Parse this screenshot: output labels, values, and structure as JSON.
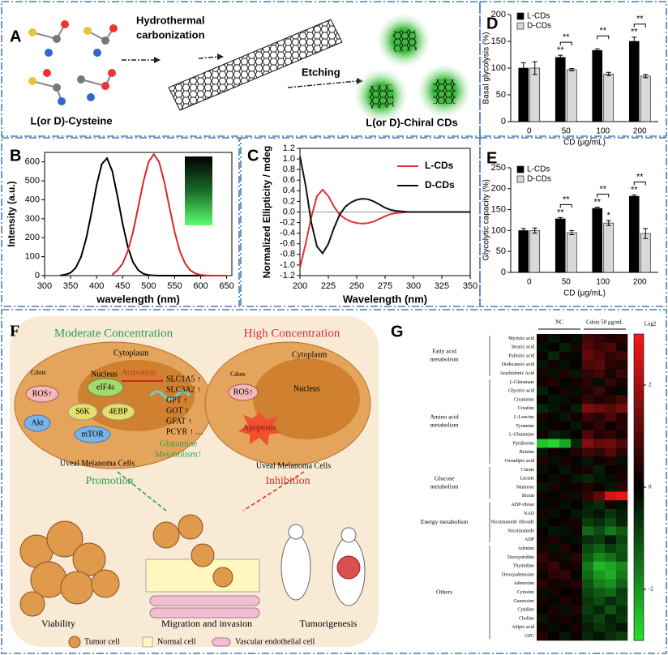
{
  "diagrams": {
    "A": {
      "label": "A",
      "step1": [
        "Hydrothermal",
        "carbonization"
      ],
      "step2": "Etching",
      "source": "L(or D)-Cysteine",
      "product": "L(or D)-Chiral CDs"
    },
    "F": {
      "label": "F",
      "moderate": "Moderate Concentration",
      "high": "High Concentration",
      "left_cell": {
        "cytoplasm": "Cytoplasm",
        "nucleus": "Nucleus",
        "activation": "Activation",
        "cdots": "Cdots",
        "ros": "ROS↑",
        "eif": "eIF4s",
        "s6k": "S6K",
        "ebp": "4EBP",
        "akt": "Akt",
        "mtor": "mTOR",
        "genes": [
          "SLC1A5 ↑",
          "SLC3A2 ↑",
          "GPT ↑",
          "GOT ↑",
          "GFAT ↑",
          "PCYR ↑ …"
        ],
        "glutamine": [
          "Glutamine",
          "Metabolism↑"
        ],
        "name": "Uveal Melanoma Cells"
      },
      "right_cell": {
        "cytoplasm": "Cytoplasm",
        "nucleus": "Nucleus",
        "cdots": "Cdots",
        "ros": "ROS↑",
        "apoptosis": "Apoptosis",
        "name": "Uveal Melanoma Cells"
      },
      "promotion": "Promotion",
      "inhibition": "Inhibition",
      "viability": "Viability",
      "migration": "Migration and invasion",
      "tumorigenesis": "Tumorigenesis",
      "legend": [
        "Tumor cell",
        "Normal cell",
        "Vascular endothelial cell"
      ]
    }
  },
  "chart_data": [
    {
      "panel": "B",
      "type": "line",
      "xlabel": "wavelength (nm)",
      "ylabel": "Intensity (a.u.)",
      "x": [
        330,
        340,
        350,
        360,
        370,
        380,
        390,
        400,
        410,
        420,
        430,
        440,
        450,
        460,
        470,
        480,
        490,
        500,
        510,
        520,
        530,
        540,
        550,
        560,
        570,
        580,
        590,
        600,
        610,
        620,
        630,
        640,
        650
      ],
      "series": [
        {
          "color": "#000000",
          "values": [
            1,
            5,
            15,
            42,
            98,
            195,
            331,
            478,
            589,
            619,
            553,
            421,
            273,
            151,
            71,
            29,
            10,
            3,
            1,
            0,
            0,
            0,
            0,
            0,
            0,
            0,
            0,
            0,
            0,
            0,
            0,
            0,
            0
          ]
        },
        {
          "color": "#d62728",
          "values": [
            null,
            null,
            null,
            null,
            null,
            null,
            null,
            null,
            null,
            null,
            5,
            28,
            64,
            130,
            231,
            361,
            496,
            600,
            640,
            600,
            496,
            361,
            231,
            130,
            64,
            28,
            11,
            4,
            1,
            0,
            0,
            0,
            0
          ]
        }
      ],
      "xlim": [
        300,
        660
      ],
      "xticks": [
        300,
        350,
        400,
        450,
        500,
        550,
        600,
        650
      ],
      "ylim": [
        0,
        650
      ],
      "yticks": [
        0,
        100,
        200,
        300,
        400,
        500,
        600
      ]
    },
    {
      "panel": "C",
      "type": "line",
      "xlabel": "Wavelength (nm)",
      "ylabel": "Normalized Ellipticity / mdeg",
      "x": [
        200,
        205,
        210,
        215,
        220,
        225,
        230,
        235,
        240,
        245,
        250,
        255,
        260,
        265,
        270,
        275,
        280,
        285,
        290,
        295,
        300,
        305,
        310,
        315,
        320,
        325,
        330,
        335,
        340,
        345,
        350
      ],
      "series": [
        {
          "name": "L-CDs",
          "color": "#e03030",
          "values": [
            -1.05,
            -0.6,
            -0.1,
            0.3,
            0.42,
            0.3,
            0.1,
            -0.05,
            -0.13,
            -0.18,
            -0.21,
            -0.22,
            -0.21,
            -0.18,
            -0.13,
            -0.08,
            -0.04,
            -0.02,
            -0.01,
            0,
            0,
            0,
            0,
            0,
            0,
            0,
            0,
            0,
            0,
            0,
            0
          ]
        },
        {
          "name": "D-CDs",
          "color": "#111111",
          "values": [
            1.05,
            0.5,
            -0.2,
            -0.65,
            -0.78,
            -0.6,
            -0.3,
            -0.05,
            0.1,
            0.18,
            0.23,
            0.25,
            0.24,
            0.2,
            0.14,
            0.08,
            0.04,
            0.02,
            0.01,
            0,
            0,
            0,
            0,
            0,
            0,
            0,
            0,
            0,
            0,
            0,
            0
          ]
        }
      ],
      "xlim": [
        200,
        350
      ],
      "xticks": [
        200,
        225,
        250,
        275,
        300,
        325,
        350
      ],
      "ylim": [
        -1.2,
        1.2
      ],
      "yticks": [
        1.2,
        {
          "value": 1,
          "label": "1.0"
        },
        0.8,
        0.6,
        0.4,
        0.2,
        {
          "value": 0,
          "label": "0.0"
        },
        -0.2,
        -0.4,
        -0.6,
        -0.8,
        {
          "value": -1,
          "label": "-1.0"
        },
        -1.2
      ],
      "legend": "upper right"
    },
    {
      "panel": "D",
      "type": "bar",
      "xlabel": "CD (μg/mL)",
      "ylabel": "Basal glycolysis (%)",
      "categories": [
        "0",
        "50",
        "100",
        "200"
      ],
      "series": [
        {
          "name": "L-CDs",
          "color": "#000000",
          "values": [
            100,
            120,
            133,
            150
          ],
          "errors": [
            10,
            4,
            3,
            8
          ],
          "significance": [
            null,
            "**",
            null,
            "**"
          ]
        },
        {
          "name": "D-CDs",
          "color": "#d9d9d9",
          "values": [
            100,
            97,
            89,
            85
          ],
          "errors": [
            12,
            2,
            3,
            3
          ]
        }
      ],
      "pair_significance": [
        null,
        "**",
        "**",
        "**"
      ],
      "ylim": [
        0,
        200
      ],
      "yticks": [
        0,
        50,
        100,
        150,
        200
      ],
      "legend": "upper left"
    },
    {
      "panel": "E",
      "type": "bar",
      "xlabel": "CD (μg/mL)",
      "ylabel": "Glycolytic capacity (%)",
      "categories": [
        "0",
        "50",
        "100",
        "200"
      ],
      "series": [
        {
          "name": "L-CDs",
          "color": "#000000",
          "values": [
            100,
            128,
            153,
            182
          ],
          "errors": [
            5,
            3,
            3,
            3
          ],
          "significance": [
            null,
            "**",
            "**",
            "**"
          ]
        },
        {
          "name": "D-CDs",
          "color": "#d9d9d9",
          "values": [
            100,
            95,
            118,
            93
          ],
          "errors": [
            6,
            5,
            6,
            12
          ],
          "significance": [
            null,
            null,
            "*",
            null
          ]
        }
      ],
      "pair_significance": [
        null,
        "**",
        "**",
        "**"
      ],
      "ylim": [
        0,
        250
      ],
      "yticks": [
        0,
        50,
        100,
        150,
        200,
        250
      ],
      "legend": "upper left"
    },
    {
      "panel": "G",
      "type": "heatmap",
      "column_groups": [
        "NC",
        "Cdots 50 μg/mL"
      ],
      "groups": [
        [
          "Fatty acid",
          "metabolism"
        ],
        [
          "Amino acid",
          "metabolism"
        ],
        [
          "Glucose",
          "metabolism"
        ],
        [
          "Energy metabolism"
        ],
        [
          "Others"
        ]
      ],
      "rows": [
        "Myristic acid",
        "Stearic acid",
        "Palmitic acid",
        "Dodecanoic acid",
        "Arachidonic Acid",
        "L-Glutamate",
        "Glyceric acid",
        "Creatinine",
        "Creatine",
        "L-Leucine",
        "Tyramine",
        "L-Glutamine",
        "Pyridoxine",
        "Betaine",
        "Oxoadipic acid",
        "Citrate",
        "Lactate",
        "Mannose",
        "Biotin",
        "ADP-ribose",
        "NAD",
        "Nicotinamide riboside",
        "Nicotinamide",
        "ADP",
        "Adenine",
        "Deoxyuridine",
        "Thymidine",
        "Deoxyadenosine",
        "Adenosine",
        "Cytosine",
        "Guanosine",
        "Cytidine",
        "Choline",
        "Adipic acid",
        "GPC"
      ],
      "values": [
        [
          0.2,
          -0.3,
          0.1,
          -0.2,
          0.8,
          0.6,
          0.4,
          0.5
        ],
        [
          -0.2,
          0.1,
          -0.4,
          0.3,
          1.0,
          0.7,
          0.9,
          0.3
        ],
        [
          0.1,
          -0.5,
          0.2,
          -0.1,
          1.2,
          0.9,
          0.6,
          0.8
        ],
        [
          -0.3,
          0.2,
          -0.2,
          0.1,
          0.9,
          1.1,
          0.5,
          0.4
        ],
        [
          0.3,
          -0.2,
          0.4,
          -0.3,
          0.6,
          0.8,
          0.3,
          0.7
        ],
        [
          0.2,
          0.4,
          -0.1,
          0.3,
          0.5,
          -0.2,
          0.6,
          0.3
        ],
        [
          -0.4,
          0.1,
          0.3,
          -0.2,
          0.4,
          0.7,
          0.2,
          -0.1
        ],
        [
          0.1,
          -0.3,
          -0.2,
          0.2,
          0.6,
          0.4,
          0.5,
          0.8
        ],
        [
          -0.5,
          -0.3,
          0.2,
          -0.4,
          1.5,
          1.3,
          1.1,
          1.4
        ],
        [
          0.3,
          0.1,
          -0.3,
          0.2,
          0.7,
          0.5,
          0.9,
          0.4
        ],
        [
          -0.2,
          0.2,
          0.1,
          -0.3,
          0.3,
          0.6,
          0.2,
          0.5
        ],
        [
          0.2,
          -0.4,
          -0.3,
          0.1,
          0.9,
          0.4,
          0.6,
          0.3
        ],
        [
          -2.6,
          -2.8,
          -2.2,
          -0.5,
          1.6,
          1.2,
          1.4,
          0.9
        ],
        [
          -0.3,
          0.2,
          -0.1,
          0.4,
          0.8,
          0.6,
          1.0,
          0.5
        ],
        [
          0.4,
          -0.2,
          0.3,
          -0.1,
          -0.3,
          0.2,
          0.4,
          -0.2
        ],
        [
          -0.2,
          0.1,
          -0.3,
          0.2,
          0.3,
          -0.4,
          0.1,
          0.2
        ],
        [
          0.1,
          -0.2,
          0.2,
          -0.3,
          -0.5,
          -0.3,
          -0.2,
          0.3
        ],
        [
          -0.3,
          0.3,
          -0.1,
          0.2,
          0.4,
          0.2,
          -0.3,
          0.5
        ],
        [
          0.2,
          -0.1,
          0.3,
          -0.2,
          0.6,
          1.2,
          2.6,
          2.8
        ],
        [
          -0.1,
          0.2,
          -0.2,
          0.1,
          -0.4,
          -0.6,
          0.3,
          -0.2
        ],
        [
          0.3,
          -0.2,
          0.1,
          -0.3,
          -0.5,
          -0.3,
          -0.7,
          -0.4
        ],
        [
          -0.2,
          0.1,
          0.2,
          0.3,
          -0.8,
          -0.6,
          -1.0,
          -0.5
        ],
        [
          0.1,
          -0.3,
          -0.2,
          0.2,
          -1.4,
          -1.0,
          -1.6,
          -1.2
        ],
        [
          0.2,
          0.4,
          -0.1,
          -0.2,
          -0.6,
          -0.8,
          -0.3,
          -0.9
        ],
        [
          0.3,
          -0.2,
          0.4,
          0.1,
          -1.0,
          -1.3,
          -0.8,
          -1.1
        ],
        [
          0.6,
          0.3,
          -0.2,
          0.5,
          -1.2,
          -1.8,
          -1.5,
          -1.0
        ],
        [
          0.4,
          0.7,
          0.2,
          0.3,
          -1.6,
          -2.4,
          -2.2,
          -1.8
        ],
        [
          0.2,
          0.5,
          0.6,
          -0.1,
          -1.4,
          -2.0,
          -2.3,
          -1.6
        ],
        [
          0.5,
          0.2,
          0.3,
          0.4,
          -1.1,
          -1.7,
          -1.9,
          -1.3
        ],
        [
          -0.2,
          0.3,
          0.1,
          0.2,
          -0.9,
          -1.2,
          -1.4,
          -0.8
        ],
        [
          0.3,
          -0.1,
          0.4,
          0.2,
          -0.7,
          -1.0,
          -0.6,
          -0.9
        ],
        [
          0.1,
          0.3,
          -0.2,
          0.4,
          -0.8,
          -0.5,
          -1.1,
          -0.6
        ],
        [
          -0.3,
          0.2,
          0.3,
          -0.1,
          -0.6,
          -0.9,
          -0.4,
          -0.7
        ],
        [
          0.2,
          -0.2,
          0.1,
          0.3,
          -0.4,
          -0.7,
          -0.5,
          -0.3
        ],
        [
          0.4,
          0.1,
          -0.3,
          0.2,
          -0.5,
          -0.3,
          -0.6,
          -0.8
        ]
      ],
      "colorbar": {
        "label": "Log2",
        "lim": [
          -3,
          3
        ],
        "ticks": [
          2,
          0,
          -2
        ]
      }
    }
  ]
}
